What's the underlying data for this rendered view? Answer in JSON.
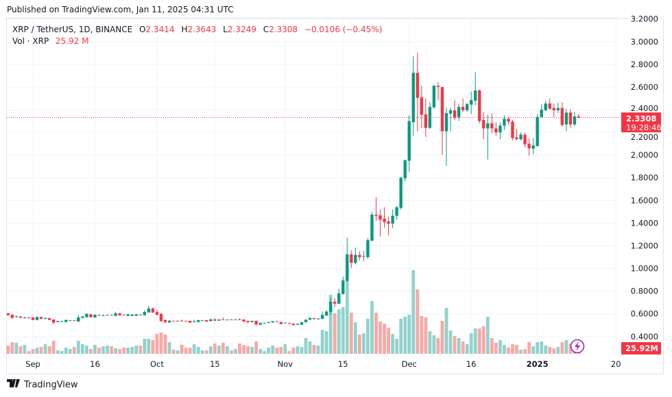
{
  "header": {
    "published": "Published on TradingView.com, Jan 11, 2025 04:31 UTC"
  },
  "legend": {
    "symbol": "XRP / TetherUS, 1D, BINANCE",
    "o_label": "O",
    "o": "2.3414",
    "h_label": "H",
    "h": "2.3643",
    "l_label": "L",
    "l": "2.3249",
    "c_label": "C",
    "c": "2.3308",
    "change": "−0.0106 (−0.45%)",
    "vol_label": "Vol · XRP",
    "vol": "25.92 M"
  },
  "last_price": {
    "price": "2.3308",
    "countdown": "19:28:46",
    "volume": "25.92M"
  },
  "footer": {
    "brand": "TradingView"
  },
  "colors": {
    "up": "#089981",
    "down": "#f23645",
    "vol_up": "#92d2cc",
    "vol_down": "#f7a9a7",
    "grid": "#f0f3fa",
    "lightning": "#9c27b0"
  },
  "icons": [
    "tradingview-logo-icon",
    "lightning-icon"
  ],
  "chart_data": {
    "type": "candlestick",
    "title": "XRP / TetherUS, 1D, BINANCE",
    "y_axis": {
      "position": "right",
      "range": [
        0.4,
        3.2
      ],
      "ticks": [
        "3.2000",
        "3.0000",
        "2.8000",
        "2.6000",
        "2.4000",
        "2.2000",
        "2.0000",
        "1.8000",
        "1.6000",
        "1.4000",
        "1.2000",
        "1.0000",
        "0.8000",
        "0.6000",
        "0.4000"
      ]
    },
    "x_axis": {
      "ticks": [
        {
          "label": "Sep",
          "date": "2024-09-01"
        },
        {
          "label": "16",
          "date": "2024-09-16"
        },
        {
          "label": "Oct",
          "date": "2024-10-01"
        },
        {
          "label": "15",
          "date": "2024-10-15"
        },
        {
          "label": "Nov",
          "date": "2024-11-01"
        },
        {
          "label": "15",
          "date": "2024-11-15"
        },
        {
          "label": "Dec",
          "date": "2024-12-01"
        },
        {
          "label": "16",
          "date": "2024-12-16"
        },
        {
          "label": "2025",
          "date": "2025-01-01"
        },
        {
          "label": "20",
          "date": "2025-01-20"
        }
      ]
    },
    "grid": true,
    "columns": [
      "date",
      "open",
      "high",
      "low",
      "close",
      "volume_M"
    ],
    "candles": [
      [
        "2024-08-26",
        0.604,
        0.61,
        0.584,
        0.588,
        144
      ],
      [
        "2024-08-27",
        0.592,
        0.596,
        0.556,
        0.564,
        204
      ],
      [
        "2024-08-28",
        0.574,
        0.586,
        0.568,
        0.578,
        192
      ],
      [
        "2024-08-29",
        0.576,
        0.58,
        0.562,
        0.566,
        132
      ],
      [
        "2024-08-30",
        0.564,
        0.574,
        0.558,
        0.568,
        156
      ],
      [
        "2024-08-31",
        0.568,
        0.571,
        0.561,
        0.564,
        48
      ],
      [
        "2024-09-01",
        0.568,
        0.57,
        0.543,
        0.546,
        84
      ],
      [
        "2024-09-02",
        0.546,
        0.575,
        0.543,
        0.572,
        108
      ],
      [
        "2024-09-03",
        0.572,
        0.576,
        0.553,
        0.556,
        120
      ],
      [
        "2024-09-04",
        0.558,
        0.57,
        0.55,
        0.562,
        168
      ],
      [
        "2024-09-05",
        0.562,
        0.565,
        0.544,
        0.546,
        132
      ],
      [
        "2024-09-06",
        0.55,
        0.553,
        0.51,
        0.522,
        228
      ],
      [
        "2024-09-07",
        0.528,
        0.54,
        0.525,
        0.536,
        60
      ],
      [
        "2024-09-08",
        0.53,
        0.539,
        0.527,
        0.536,
        48
      ],
      [
        "2024-09-09",
        0.528,
        0.549,
        0.526,
        0.546,
        108
      ],
      [
        "2024-09-10",
        0.541,
        0.545,
        0.54,
        0.543,
        84
      ],
      [
        "2024-09-11",
        0.543,
        0.545,
        0.539,
        0.541,
        120
      ],
      [
        "2024-09-12",
        0.532,
        0.592,
        0.53,
        0.568,
        228
      ],
      [
        "2024-09-13",
        0.564,
        0.58,
        0.562,
        0.576,
        168
      ],
      [
        "2024-09-14",
        0.57,
        0.604,
        0.568,
        0.6,
        144
      ],
      [
        "2024-09-15",
        0.596,
        0.599,
        0.567,
        0.57,
        84
      ],
      [
        "2024-09-16",
        0.568,
        0.596,
        0.566,
        0.592,
        156
      ],
      [
        "2024-09-17",
        0.591,
        0.596,
        0.584,
        0.589,
        108
      ],
      [
        "2024-09-18",
        0.585,
        0.594,
        0.578,
        0.587,
        132
      ],
      [
        "2024-09-19",
        0.588,
        0.594,
        0.585,
        0.591,
        144
      ],
      [
        "2024-09-20",
        0.591,
        0.594,
        0.584,
        0.587,
        132
      ],
      [
        "2024-09-21",
        0.582,
        0.616,
        0.58,
        0.604,
        96
      ],
      [
        "2024-09-22",
        0.604,
        0.607,
        0.583,
        0.586,
        84
      ],
      [
        "2024-09-23",
        0.592,
        0.595,
        0.586,
        0.589,
        108
      ],
      [
        "2024-09-24",
        0.582,
        0.599,
        0.58,
        0.596,
        108
      ],
      [
        "2024-09-25",
        0.582,
        0.597,
        0.58,
        0.594,
        120
      ],
      [
        "2024-09-26",
        0.583,
        0.599,
        0.58,
        0.596,
        144
      ],
      [
        "2024-09-27",
        0.593,
        0.597,
        0.588,
        0.59,
        144
      ],
      [
        "2024-09-28",
        0.588,
        0.632,
        0.586,
        0.616,
        264
      ],
      [
        "2024-09-29",
        0.612,
        0.671,
        0.61,
        0.647,
        264
      ],
      [
        "2024-09-30",
        0.647,
        0.657,
        0.608,
        0.612,
        240
      ],
      [
        "2024-10-01",
        0.616,
        0.636,
        0.588,
        0.592,
        348
      ],
      [
        "2024-10-02",
        0.6,
        0.604,
        0.528,
        0.536,
        372
      ],
      [
        "2024-10-03",
        0.546,
        0.55,
        0.52,
        0.526,
        336
      ],
      [
        "2024-10-04",
        0.524,
        0.543,
        0.52,
        0.54,
        204
      ],
      [
        "2024-10-05",
        0.537,
        0.54,
        0.532,
        0.535,
        72
      ],
      [
        "2024-10-06",
        0.537,
        0.542,
        0.534,
        0.539,
        60
      ],
      [
        "2024-10-07",
        0.54,
        0.55,
        0.533,
        0.536,
        156
      ],
      [
        "2024-10-08",
        0.537,
        0.54,
        0.532,
        0.535,
        108
      ],
      [
        "2024-10-09",
        0.538,
        0.54,
        0.519,
        0.522,
        108
      ],
      [
        "2024-10-10",
        0.529,
        0.55,
        0.525,
        0.531,
        168
      ],
      [
        "2024-10-11",
        0.528,
        0.547,
        0.525,
        0.544,
        120
      ],
      [
        "2024-10-12",
        0.541,
        0.546,
        0.539,
        0.543,
        60
      ],
      [
        "2024-10-13",
        0.544,
        0.547,
        0.53,
        0.532,
        60
      ],
      [
        "2024-10-14",
        0.536,
        0.555,
        0.534,
        0.552,
        132
      ],
      [
        "2024-10-15",
        0.55,
        0.562,
        0.537,
        0.54,
        180
      ],
      [
        "2024-10-16",
        0.54,
        0.553,
        0.538,
        0.55,
        144
      ],
      [
        "2024-10-17",
        0.551,
        0.568,
        0.547,
        0.549,
        192
      ],
      [
        "2024-10-18",
        0.547,
        0.552,
        0.545,
        0.549,
        132
      ],
      [
        "2024-10-19",
        0.551,
        0.553,
        0.547,
        0.549,
        60
      ],
      [
        "2024-10-20",
        0.547,
        0.553,
        0.545,
        0.55,
        84
      ],
      [
        "2024-10-21",
        0.55,
        0.562,
        0.544,
        0.546,
        180
      ],
      [
        "2024-10-22",
        0.55,
        0.553,
        0.53,
        0.532,
        156
      ],
      [
        "2024-10-23",
        0.538,
        0.541,
        0.516,
        0.528,
        132
      ],
      [
        "2024-10-24",
        0.528,
        0.541,
        0.526,
        0.538,
        120
      ],
      [
        "2024-10-25",
        0.538,
        0.541,
        0.494,
        0.506,
        216
      ],
      [
        "2024-10-26",
        0.504,
        0.523,
        0.502,
        0.52,
        84
      ],
      [
        "2024-10-27",
        0.519,
        0.524,
        0.516,
        0.521,
        48
      ],
      [
        "2024-10-28",
        0.52,
        0.531,
        0.517,
        0.528,
        108
      ],
      [
        "2024-10-29",
        0.524,
        0.537,
        0.522,
        0.534,
        144
      ],
      [
        "2024-10-30",
        0.535,
        0.538,
        0.53,
        0.533,
        108
      ],
      [
        "2024-10-31",
        0.528,
        0.531,
        0.507,
        0.51,
        120
      ],
      [
        "2024-11-01",
        0.519,
        0.524,
        0.516,
        0.521,
        168
      ],
      [
        "2024-11-02",
        0.52,
        0.523,
        0.511,
        0.514,
        48
      ],
      [
        "2024-11-03",
        0.514,
        0.517,
        0.496,
        0.502,
        108
      ],
      [
        "2024-11-04",
        0.504,
        0.515,
        0.5,
        0.512,
        132
      ],
      [
        "2024-11-05",
        0.504,
        0.53,
        0.502,
        0.526,
        120
      ],
      [
        "2024-11-06",
        0.526,
        0.552,
        0.524,
        0.548,
        276
      ],
      [
        "2024-11-07",
        0.548,
        0.575,
        0.546,
        0.562,
        216
      ],
      [
        "2024-11-08",
        0.562,
        0.566,
        0.548,
        0.555,
        156
      ],
      [
        "2024-11-09",
        0.555,
        0.562,
        0.55,
        0.557,
        144
      ],
      [
        "2024-11-10",
        0.556,
        0.62,
        0.552,
        0.59,
        420
      ],
      [
        "2024-11-11",
        0.586,
        0.63,
        0.58,
        0.62,
        396
      ],
      [
        "2024-11-12",
        0.617,
        0.74,
        0.59,
        0.707,
        1032
      ],
      [
        "2024-11-13",
        0.707,
        0.74,
        0.66,
        0.69,
        708
      ],
      [
        "2024-11-14",
        0.69,
        0.82,
        0.685,
        0.78,
        780
      ],
      [
        "2024-11-15",
        0.775,
        0.93,
        0.77,
        0.895,
        816
      ],
      [
        "2024-11-16",
        0.89,
        1.27,
        0.88,
        1.125,
        1272
      ],
      [
        "2024-11-17",
        1.125,
        1.16,
        1.005,
        1.05,
        720
      ],
      [
        "2024-11-18",
        1.05,
        1.185,
        1.04,
        1.12,
        552
      ],
      [
        "2024-11-19",
        1.12,
        1.15,
        1.07,
        1.1,
        336
      ],
      [
        "2024-11-20",
        1.105,
        1.155,
        1.065,
        1.11,
        360
      ],
      [
        "2024-11-21",
        1.1,
        1.27,
        1.085,
        1.25,
        612
      ],
      [
        "2024-11-22",
        1.245,
        1.5,
        1.24,
        1.475,
        924
      ],
      [
        "2024-11-23",
        1.475,
        1.63,
        1.42,
        1.465,
        720
      ],
      [
        "2024-11-24",
        1.47,
        1.52,
        1.28,
        1.43,
        564
      ],
      [
        "2024-11-25",
        1.44,
        1.54,
        1.36,
        1.41,
        528
      ],
      [
        "2024-11-26",
        1.415,
        1.46,
        1.29,
        1.395,
        456
      ],
      [
        "2024-11-27",
        1.395,
        1.52,
        1.355,
        1.465,
        348
      ],
      [
        "2024-11-28",
        1.465,
        1.55,
        1.43,
        1.54,
        264
      ],
      [
        "2024-11-29",
        1.535,
        1.81,
        1.52,
        1.8,
        612
      ],
      [
        "2024-11-30",
        1.795,
        1.96,
        1.77,
        1.955,
        648
      ],
      [
        "2024-12-01",
        1.95,
        2.35,
        1.85,
        2.3,
        684
      ],
      [
        "2024-12-02",
        2.29,
        2.87,
        2.17,
        2.725,
        1464
      ],
      [
        "2024-12-03",
        2.725,
        2.905,
        2.21,
        2.505,
        1128
      ],
      [
        "2024-12-04",
        2.51,
        2.61,
        2.24,
        2.355,
        660
      ],
      [
        "2024-12-05",
        2.36,
        2.5,
        2.16,
        2.24,
        636
      ],
      [
        "2024-12-06",
        2.24,
        2.465,
        2.23,
        2.425,
        396
      ],
      [
        "2024-12-07",
        2.42,
        2.62,
        2.41,
        2.61,
        324
      ],
      [
        "2024-12-08",
        2.61,
        2.645,
        2.485,
        2.6,
        276
      ],
      [
        "2024-12-09",
        2.6,
        2.6,
        2.0,
        2.21,
        576
      ],
      [
        "2024-12-10",
        2.21,
        2.42,
        1.905,
        2.37,
        804
      ],
      [
        "2024-12-11",
        2.365,
        2.42,
        2.21,
        2.395,
        408
      ],
      [
        "2024-12-12",
        2.395,
        2.485,
        2.31,
        2.33,
        312
      ],
      [
        "2024-12-13",
        2.335,
        2.455,
        2.3,
        2.425,
        276
      ],
      [
        "2024-12-14",
        2.425,
        2.5,
        2.38,
        2.395,
        216
      ],
      [
        "2024-12-15",
        2.395,
        2.46,
        2.38,
        2.45,
        168
      ],
      [
        "2024-12-16",
        2.445,
        2.56,
        2.36,
        2.485,
        360
      ],
      [
        "2024-12-17",
        2.48,
        2.73,
        2.44,
        2.57,
        444
      ],
      [
        "2024-12-18",
        2.57,
        2.58,
        2.28,
        2.3,
        444
      ],
      [
        "2024-12-19",
        2.31,
        2.38,
        2.14,
        2.235,
        480
      ],
      [
        "2024-12-20",
        2.235,
        2.355,
        1.96,
        2.28,
        648
      ],
      [
        "2024-12-21",
        2.28,
        2.37,
        2.19,
        2.235,
        276
      ],
      [
        "2024-12-22",
        2.235,
        2.29,
        2.17,
        2.2,
        192
      ],
      [
        "2024-12-23",
        2.2,
        2.29,
        2.14,
        2.26,
        240
      ],
      [
        "2024-12-24",
        2.26,
        2.35,
        2.22,
        2.32,
        156
      ],
      [
        "2024-12-25",
        2.32,
        2.335,
        2.27,
        2.295,
        108
      ],
      [
        "2024-12-26",
        2.295,
        2.31,
        2.13,
        2.15,
        168
      ],
      [
        "2024-12-27",
        2.155,
        2.23,
        2.125,
        2.14,
        156
      ],
      [
        "2024-12-28",
        2.14,
        2.2,
        2.13,
        2.18,
        72
      ],
      [
        "2024-12-29",
        2.18,
        2.195,
        2.07,
        2.095,
        84
      ],
      [
        "2024-12-30",
        2.1,
        2.15,
        1.995,
        2.06,
        204
      ],
      [
        "2024-12-31",
        2.057,
        2.15,
        2.01,
        2.085,
        132
      ],
      [
        "2025-01-01",
        2.08,
        2.36,
        2.075,
        2.335,
        204
      ],
      [
        "2025-01-02",
        2.335,
        2.45,
        2.335,
        2.4,
        216
      ],
      [
        "2025-01-03",
        2.395,
        2.48,
        2.39,
        2.455,
        144
      ],
      [
        "2025-01-04",
        2.455,
        2.5,
        2.4,
        2.41,
        120
      ],
      [
        "2025-01-05",
        2.415,
        2.455,
        2.335,
        2.395,
        96
      ],
      [
        "2025-01-06",
        2.395,
        2.46,
        2.37,
        2.415,
        120
      ],
      [
        "2025-01-07",
        2.415,
        2.465,
        2.25,
        2.265,
        204
      ],
      [
        "2025-01-08",
        2.27,
        2.41,
        2.21,
        2.375,
        240
      ],
      [
        "2025-01-09",
        2.375,
        2.405,
        2.24,
        2.27,
        180
      ],
      [
        "2025-01-10",
        2.27,
        2.38,
        2.255,
        2.34,
        120
      ],
      [
        "2025-01-11",
        2.3414,
        2.3643,
        2.3249,
        2.3308,
        25.92
      ]
    ]
  }
}
